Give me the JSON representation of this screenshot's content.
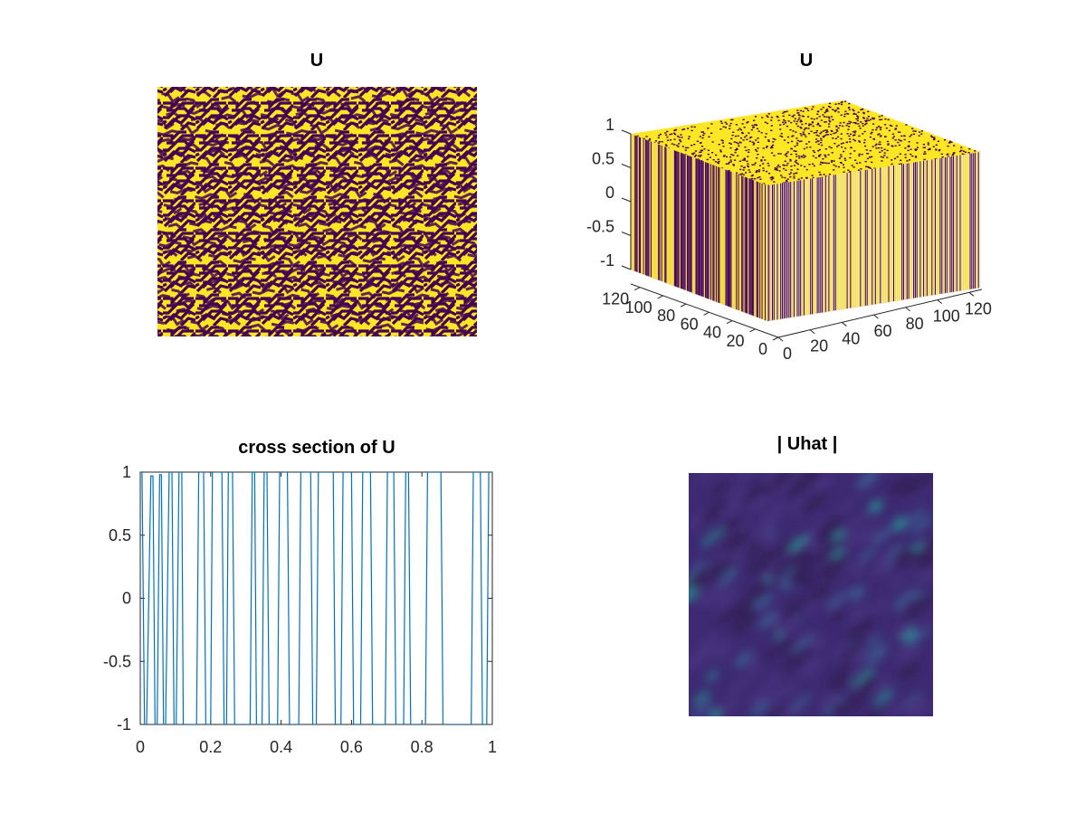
{
  "colors": {
    "viridis_dark": "#440154",
    "viridis_yellow": "#fde725",
    "line_blue": "#0072bd",
    "axis": "#262626",
    "grid3d": "#d9d9d9"
  },
  "chart_data": [
    {
      "type": "heatmap",
      "title": "U",
      "colormap": "viridis",
      "value_range": [
        -1,
        1
      ],
      "description_values": "binary labyrinth pattern of -1 (dark purple) and 1 (yellow), stripes oriented diagonally",
      "axes_visible": false
    },
    {
      "type": "surface",
      "title": "U",
      "colormap": "viridis",
      "x_ticks": [
        "0",
        "20",
        "40",
        "60",
        "80",
        "100",
        "120"
      ],
      "y_ticks": [
        "0",
        "20",
        "40",
        "60",
        "80",
        "100",
        "120"
      ],
      "z_ticks": [
        "-1",
        "-0.5",
        "0",
        "0.5",
        "1"
      ],
      "xlim": [
        0,
        128
      ],
      "ylim": [
        0,
        128
      ],
      "zlim": [
        -1,
        1
      ],
      "grid": true
    },
    {
      "type": "line",
      "title": "cross section of U",
      "xlim": [
        0,
        1
      ],
      "ylim": [
        -1,
        1
      ],
      "x_ticks": [
        "0",
        "0.2",
        "0.4",
        "0.6",
        "0.8",
        "1"
      ],
      "y_ticks": [
        "-1",
        "-0.5",
        "0",
        "0.5",
        "1"
      ],
      "series": [
        {
          "color": "#0072bd",
          "x": [
            0,
            0.005,
            0.012,
            0.018,
            0.03,
            0.036,
            0.042,
            0.048,
            0.055,
            0.06,
            0.066,
            0.072,
            0.082,
            0.09,
            0.096,
            0.102,
            0.11,
            0.118,
            0.122,
            0.16,
            0.166,
            0.18,
            0.186,
            0.2,
            0.205,
            0.232,
            0.238,
            0.245,
            0.25,
            0.262,
            0.268,
            0.312,
            0.318,
            0.325,
            0.33,
            0.346,
            0.352,
            0.36,
            0.366,
            0.39,
            0.396,
            0.418,
            0.424,
            0.45,
            0.456,
            0.484,
            0.49,
            0.5,
            0.506,
            0.548,
            0.554,
            0.57,
            0.576,
            0.6,
            0.606,
            0.626,
            0.632,
            0.654,
            0.66,
            0.696,
            0.702,
            0.72,
            0.726,
            0.748,
            0.754,
            0.762,
            0.768,
            0.81,
            0.816,
            0.854,
            0.86,
            0.94,
            0.946,
            0.966,
            0.972,
            0.984,
            0.99,
            1.0
          ],
          "y": [
            1,
            1,
            -1,
            -1,
            0.97,
            0.97,
            -1,
            -1,
            0.98,
            0.98,
            -1,
            -1,
            1,
            1,
            -1,
            -1,
            1,
            1,
            -1,
            -1,
            1,
            1,
            -1,
            -1,
            1,
            1,
            -1,
            -1,
            1,
            1,
            -1,
            -1,
            1,
            1,
            -1,
            -1,
            1,
            1,
            -1,
            -1,
            1,
            1,
            -1,
            -1,
            1,
            1,
            -1,
            -1,
            1,
            1,
            -1,
            -1,
            1,
            1,
            -1,
            -1,
            1,
            1,
            -1,
            -1,
            1,
            1,
            -1,
            -1,
            1,
            1,
            -1,
            -1,
            1,
            1,
            -1,
            -1,
            1,
            1,
            -1,
            -1,
            1,
            1
          ]
        }
      ]
    },
    {
      "type": "heatmap",
      "title": "| Uhat |",
      "colormap": "viridis",
      "value_range": "low magnitudes (dark) with scattered teal highlights along diagonal streaks",
      "axes_visible": false
    }
  ]
}
